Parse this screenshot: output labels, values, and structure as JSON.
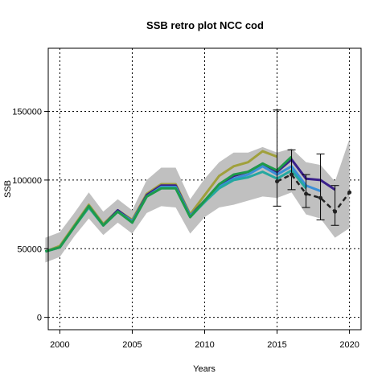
{
  "chart_data": {
    "type": "line",
    "title": "SSB retro plot NCC cod",
    "xlabel": "Years",
    "ylabel": "SSB",
    "xlim": [
      1999.2,
      2020.8
    ],
    "ylim": [
      -9000,
      196000
    ],
    "grid": true,
    "x_ticks": [
      2000,
      2005,
      2010,
      2015,
      2020
    ],
    "y_ticks": [
      0,
      50000,
      100000,
      150000
    ],
    "band": {
      "color": "#c0c0c0",
      "x": [
        1999,
        2000,
        2001,
        2002,
        2003,
        2004,
        2005,
        2006,
        2007,
        2008,
        2009,
        2010,
        2011,
        2012,
        2013,
        2014,
        2015,
        2016,
        2017,
        2018,
        2019,
        2020
      ],
      "upper": [
        58000,
        62000,
        76000,
        91000,
        77000,
        86000,
        78000,
        100000,
        109000,
        109000,
        86000,
        101000,
        113000,
        120000,
        120000,
        124000,
        120000,
        123000,
        113000,
        111000,
        99000,
        130000
      ],
      "lower": [
        40000,
        44000,
        59000,
        72000,
        60000,
        69000,
        61000,
        76000,
        81000,
        80000,
        61000,
        73000,
        80000,
        82000,
        85000,
        88000,
        87000,
        91000,
        75000,
        72000,
        58000,
        65000
      ]
    },
    "series": [
      {
        "color": "#a0a03c",
        "x": [
          1999,
          2000,
          2001,
          2002,
          2003,
          2004,
          2005,
          2006,
          2007,
          2008,
          2009,
          2010,
          2011,
          2012,
          2013,
          2014,
          2015
        ],
        "values": [
          48000,
          52000,
          67000,
          82000,
          68000,
          78000,
          71000,
          90000,
          97000,
          97000,
          75000,
          89000,
          103000,
          110000,
          113000,
          121000,
          117000
        ]
      },
      {
        "color": "#3a1f8a",
        "x": [
          1999,
          2000,
          2001,
          2002,
          2003,
          2004,
          2005,
          2006,
          2007,
          2008,
          2009,
          2010,
          2011,
          2012,
          2013,
          2014,
          2015,
          2016,
          2017,
          2018,
          2019
        ],
        "values": [
          48000,
          51000,
          66000,
          81000,
          67000,
          78000,
          70000,
          89000,
          96000,
          96000,
          74000,
          85000,
          96000,
          103000,
          106000,
          112000,
          106000,
          115000,
          101000,
          100000,
          93000
        ]
      },
      {
        "color": "#3a8fd8",
        "x": [
          1999,
          2000,
          2001,
          2002,
          2003,
          2004,
          2005,
          2006,
          2007,
          2008,
          2009,
          2010,
          2011,
          2012,
          2013,
          2014,
          2015,
          2016,
          2017,
          2018
        ],
        "values": [
          48000,
          51000,
          66000,
          81000,
          67000,
          77000,
          70000,
          88000,
          95000,
          95000,
          74000,
          84000,
          95000,
          101000,
          104000,
          110000,
          104000,
          110000,
          96000,
          92000
        ]
      },
      {
        "color": "#25a8a0",
        "x": [
          1999,
          2000,
          2001,
          2002,
          2003,
          2004,
          2005,
          2006,
          2007,
          2008,
          2009,
          2010,
          2011,
          2012,
          2013,
          2014,
          2015,
          2016,
          2017
        ],
        "values": [
          48000,
          51000,
          66000,
          80000,
          67000,
          77000,
          69000,
          88000,
          94000,
          94000,
          73000,
          84000,
          94000,
          100000,
          102000,
          106000,
          101000,
          107000,
          94000
        ]
      },
      {
        "color": "#1e9a4a",
        "x": [
          1999,
          2000,
          2001,
          2002,
          2003,
          2004,
          2005,
          2006,
          2007,
          2008,
          2009,
          2010,
          2011,
          2012,
          2013,
          2014,
          2015,
          2016
        ],
        "values": [
          48000,
          51000,
          66000,
          81000,
          67000,
          77000,
          69000,
          88000,
          94000,
          94000,
          73000,
          85000,
          97000,
          104000,
          106000,
          112000,
          107000,
          117000
        ]
      }
    ],
    "estimate": {
      "color": "#222222",
      "style": "dashed",
      "x": [
        2015,
        2016,
        2017,
        2018,
        2019,
        2020
      ],
      "values": [
        99000,
        104000,
        90000,
        87000,
        77000,
        91000
      ],
      "error_bars": [
        {
          "x": 2015,
          "low": 81000,
          "high": 151000
        },
        {
          "x": 2016,
          "low": 93000,
          "high": 122000
        },
        {
          "x": 2017,
          "low": 80000,
          "high": 104000
        },
        {
          "x": 2018,
          "low": 71000,
          "high": 119000
        },
        {
          "x": 2019,
          "low": 67000,
          "high": 96000
        }
      ]
    }
  }
}
